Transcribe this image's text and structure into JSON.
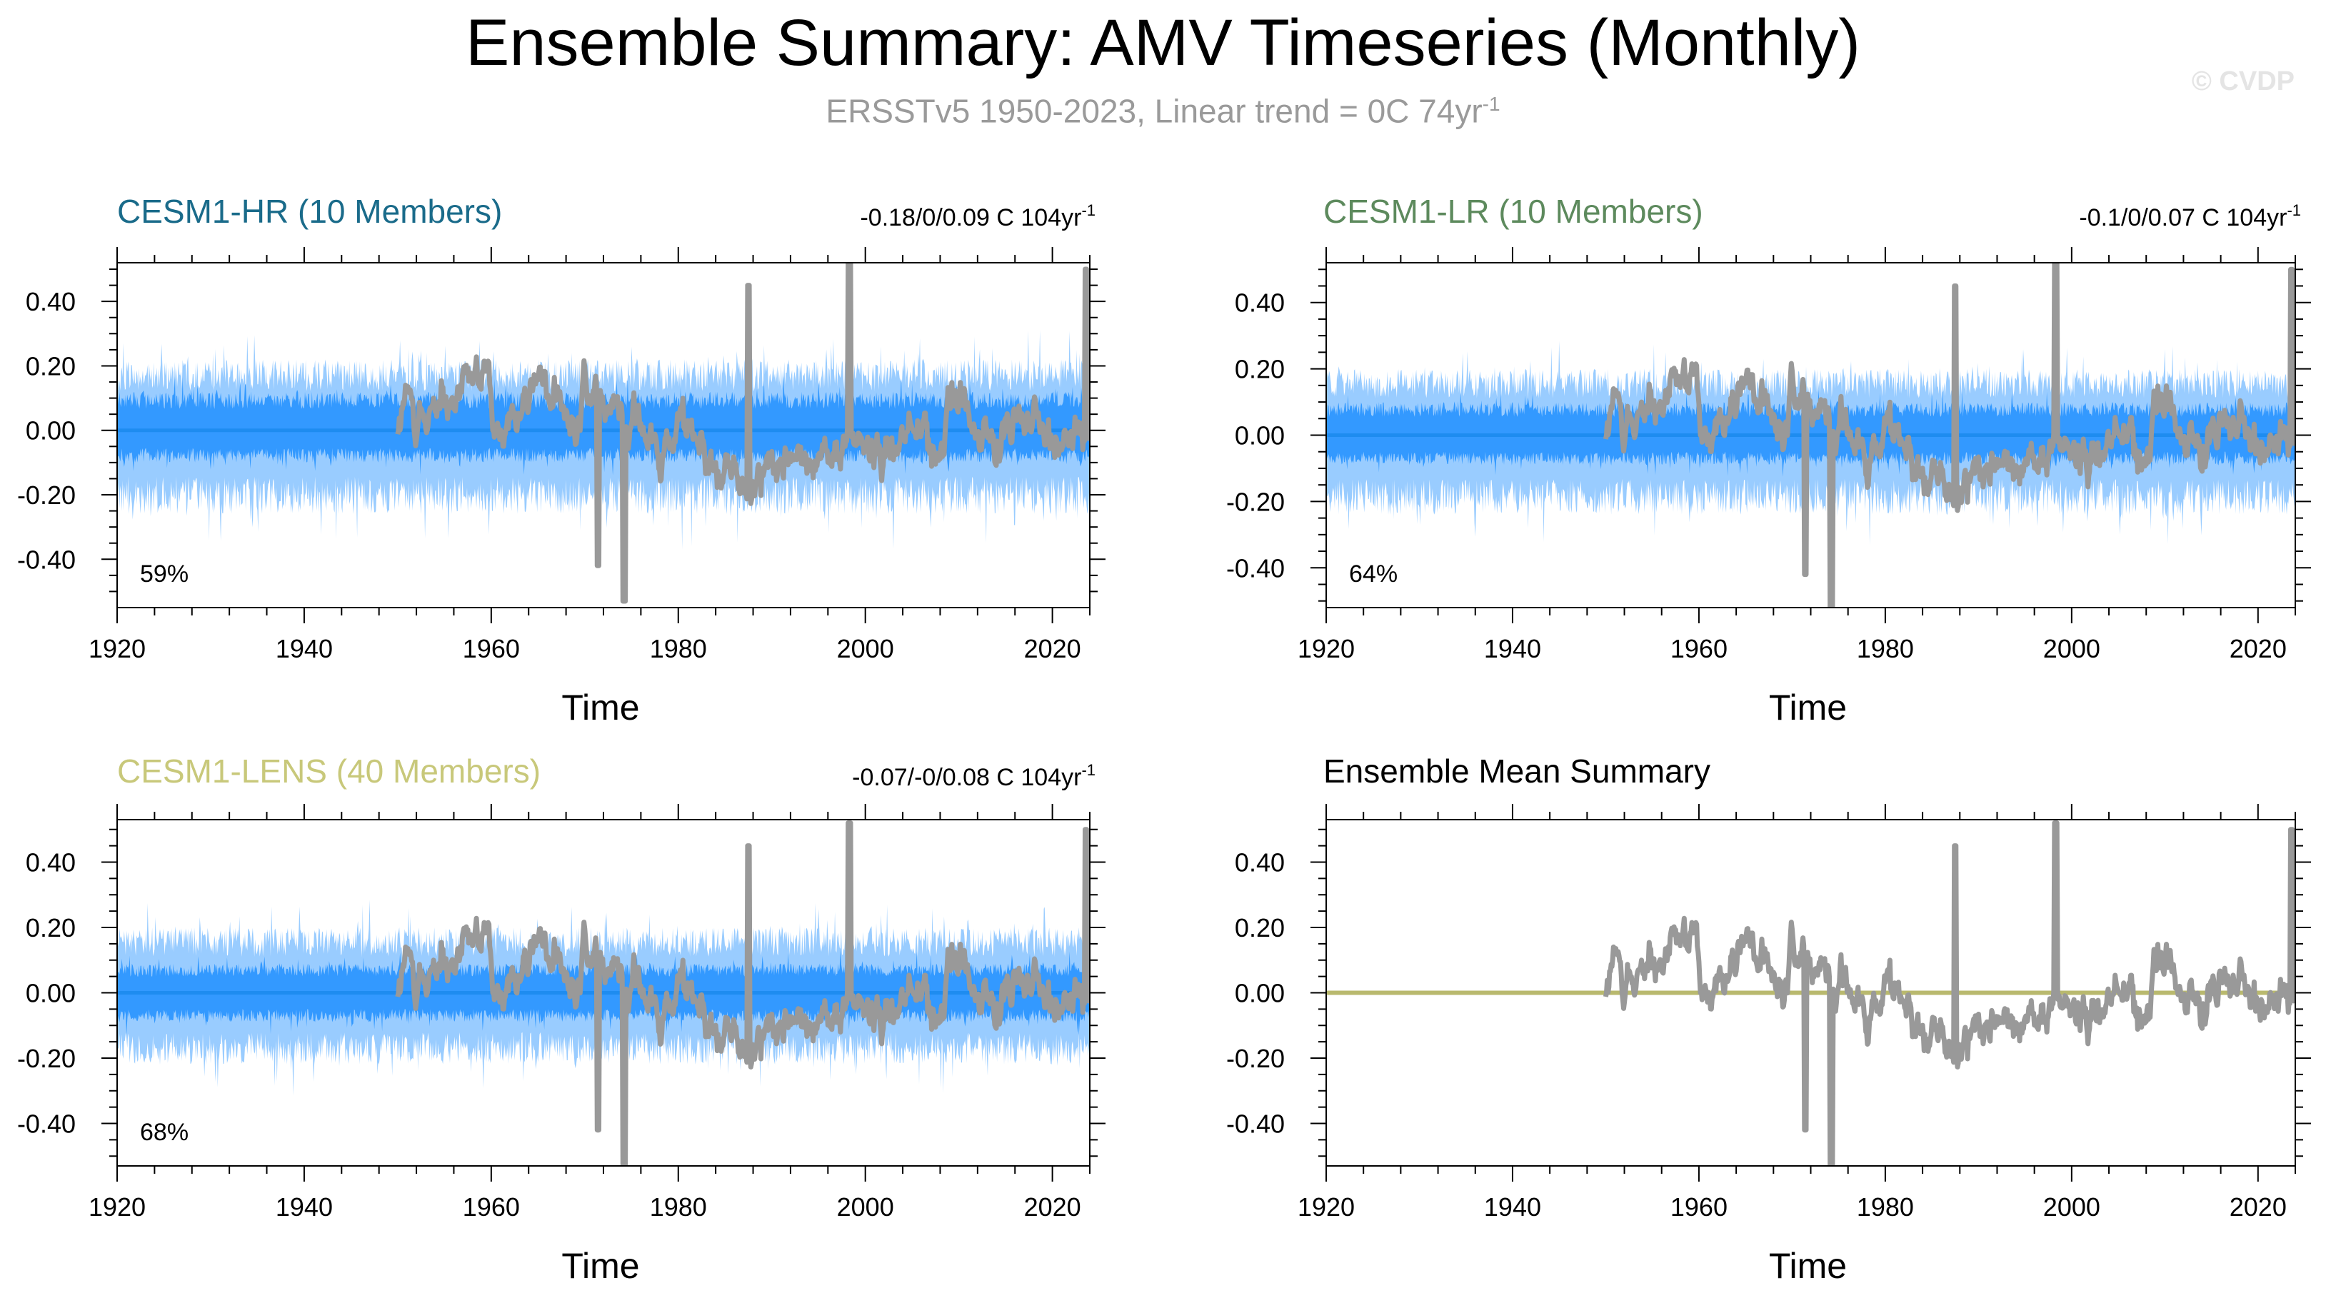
{
  "figure": {
    "title": "Ensemble Summary: AMV Timeseries (Monthly)",
    "subtitle_main": "ERSSTv5 1950-2023, Linear trend = 0C 74yr",
    "subtitle_sup": "-1",
    "watermark": "© CVDP"
  },
  "colors": {
    "observations": "#999999",
    "band_outer": "#99ccff",
    "band_inner": "#3399ff",
    "ensemble_mean": "#1e8cf0",
    "hr_label": "#1a6b8a",
    "lr_label": "#5d8a5d",
    "lens_label": "#c8c87a",
    "summary_mean": "#b9b96e"
  },
  "chart_data": [
    {
      "id": "hr",
      "type": "line",
      "title": "CESM1-HR (10 Members)",
      "title_color": "#1a6b8a",
      "trend_text": "-0.18/0/0.09 C 104yr",
      "trend_sup": "-1",
      "percent_label": "59%",
      "xlabel": "Time",
      "ylabel": "",
      "xlim": [
        1920,
        2024
      ],
      "ylim": [
        -0.55,
        0.52
      ],
      "xticks": [
        "1920",
        "1940",
        "1960",
        "1980",
        "2000",
        "2020"
      ],
      "yticks": [
        "0.40",
        "0.20",
        "0.00",
        "-0.20",
        "-0.40"
      ],
      "series": [
        {
          "role": "ensemble_spread_5_95",
          "range": [
            1920,
            2024
          ],
          "low": -0.26,
          "high": 0.22
        },
        {
          "role": "ensemble_spread_25_75",
          "range": [
            1920,
            2024
          ],
          "low": -0.1,
          "high": 0.12
        },
        {
          "role": "ensemble_mean",
          "value": 0.0
        },
        {
          "role": "observations",
          "range": [
            1950,
            2024
          ],
          "min": -0.53,
          "max": 0.52
        }
      ]
    },
    {
      "id": "lr",
      "type": "line",
      "title": "CESM1-LR (10 Members)",
      "title_color": "#5d8a5d",
      "trend_text": "-0.1/0/0.07 C 104yr",
      "trend_sup": "-1",
      "percent_label": "64%",
      "xlabel": "Time",
      "ylabel": "",
      "xlim": [
        1920,
        2024
      ],
      "ylim": [
        -0.52,
        0.52
      ],
      "xticks": [
        "1920",
        "1940",
        "1960",
        "1980",
        "2000",
        "2020"
      ],
      "yticks": [
        "0.40",
        "0.20",
        "0.00",
        "-0.20",
        "-0.40"
      ],
      "series": [
        {
          "role": "ensemble_spread_5_95",
          "range": [
            1920,
            2024
          ],
          "low": -0.24,
          "high": 0.2
        },
        {
          "role": "ensemble_spread_25_75",
          "range": [
            1920,
            2024
          ],
          "low": -0.09,
          "high": 0.1
        },
        {
          "role": "ensemble_mean",
          "value": 0.0
        },
        {
          "role": "observations",
          "range": [
            1950,
            2024
          ],
          "min": -0.53,
          "max": 0.52
        }
      ]
    },
    {
      "id": "lens",
      "type": "line",
      "title": "CESM1-LENS (40 Members)",
      "title_color": "#c8c87a",
      "trend_text": "-0.07/-0/0.08 C 104yr",
      "trend_sup": "-1",
      "percent_label": "68%",
      "xlabel": "Time",
      "ylabel": "",
      "xlim": [
        1920,
        2024
      ],
      "ylim": [
        -0.53,
        0.53
      ],
      "xticks": [
        "1920",
        "1940",
        "1960",
        "1980",
        "2000",
        "2020"
      ],
      "yticks": [
        "0.40",
        "0.20",
        "0.00",
        "-0.20",
        "-0.40"
      ],
      "series": [
        {
          "role": "ensemble_spread_5_95",
          "range": [
            1920,
            2024
          ],
          "low": -0.22,
          "high": 0.2
        },
        {
          "role": "ensemble_spread_25_75",
          "range": [
            1920,
            2024
          ],
          "low": -0.09,
          "high": 0.09
        },
        {
          "role": "ensemble_mean",
          "value": 0.0
        },
        {
          "role": "observations",
          "range": [
            1950,
            2024
          ],
          "min": -0.53,
          "max": 0.52
        }
      ]
    },
    {
      "id": "summary",
      "type": "line",
      "title": "Ensemble Mean Summary",
      "title_color": "#000000",
      "trend_text": "",
      "trend_sup": "",
      "percent_label": "",
      "xlabel": "Time",
      "ylabel": "",
      "xlim": [
        1920,
        2024
      ],
      "ylim": [
        -0.53,
        0.53
      ],
      "xticks": [
        "1920",
        "1940",
        "1960",
        "1980",
        "2000",
        "2020"
      ],
      "yticks": [
        "0.40",
        "0.20",
        "0.00",
        "-0.20",
        "-0.40"
      ],
      "series": [
        {
          "role": "ensemble_mean",
          "value": 0.0
        },
        {
          "role": "observations",
          "range": [
            1950,
            2024
          ],
          "min": -0.53,
          "max": 0.52
        }
      ]
    }
  ]
}
